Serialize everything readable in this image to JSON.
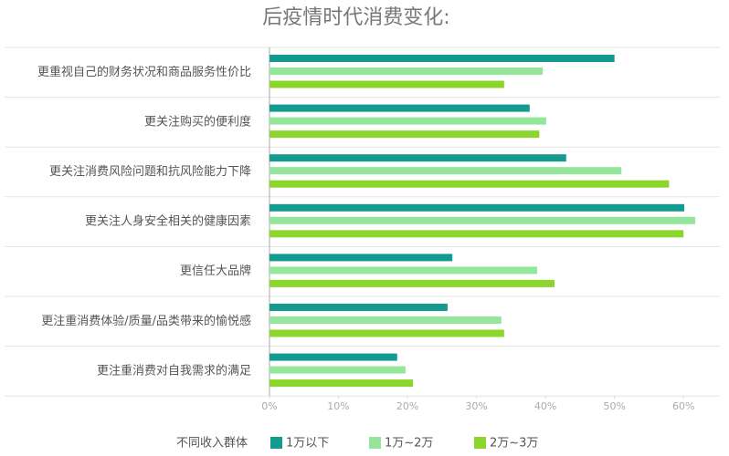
{
  "chart_data": {
    "type": "hbar",
    "title": "后疫情时代消费变化:",
    "categories": [
      "更重视自己的财务状况和商品服务性价比",
      "更关注购买的便利度",
      "更关注消费风险问题和抗风险能力下降",
      "更关注人身安全相关的健康因素",
      "更信任大品牌",
      "更注重消费体验/质量/品类带来的愉悦感",
      "更注重消费对自我需求的满足"
    ],
    "series": [
      {
        "name": "1万以下",
        "color": "#139b8f",
        "values": [
          50,
          37.7,
          43,
          60.1,
          26.5,
          25.8,
          18.5
        ]
      },
      {
        "name": "1万~2万",
        "color": "#93e69b",
        "values": [
          39.6,
          40.1,
          51,
          61.7,
          38.8,
          33.6,
          19.7
        ]
      },
      {
        "name": "2万~3万",
        "color": "#8bd52c",
        "values": [
          34,
          39.1,
          57.9,
          60,
          41.3,
          34,
          20.8
        ]
      }
    ],
    "legend_title": "不同收入群体",
    "xlim": [
      0,
      65
    ],
    "xticks": [
      {
        "value": 0,
        "label": "0%"
      },
      {
        "value": 10,
        "label": "10%"
      },
      {
        "value": 20,
        "label": "20%"
      },
      {
        "value": 30,
        "label": "30%"
      },
      {
        "value": 40,
        "label": "40%"
      },
      {
        "value": 50,
        "label": "50%"
      },
      {
        "value": 60,
        "label": "60%"
      }
    ]
  }
}
